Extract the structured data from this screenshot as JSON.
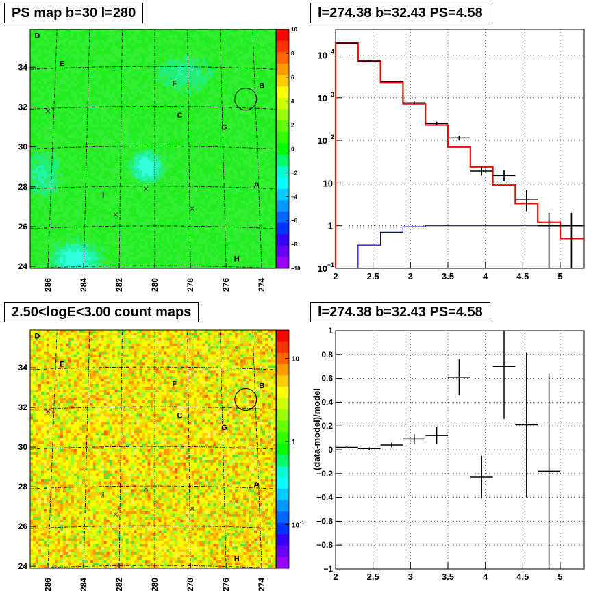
{
  "chart_data": [
    {
      "type": "heatmap",
      "title": "PS map b=30 l=280",
      "x_ticks": [
        "286",
        "284",
        "282",
        "280",
        "278",
        "276",
        "274"
      ],
      "y_ticks": [
        "24",
        "26",
        "28",
        "30",
        "32",
        "34"
      ],
      "xlim": [
        287,
        273.2
      ],
      "ylim": [
        23.9,
        35.9
      ],
      "colorbar_ticks": [
        "10",
        "8",
        "6",
        "4",
        "2",
        "0",
        "−2",
        "−4",
        "−6",
        "−8",
        "−10"
      ],
      "zlim": [
        -10,
        10
      ],
      "source_labels": [
        {
          "text": "D",
          "l": 286.6,
          "b": 35.6
        },
        {
          "text": "E",
          "l": 285.2,
          "b": 34.2
        },
        {
          "text": "F",
          "l": 278.9,
          "b": 33.2
        },
        {
          "text": "B",
          "l": 274.0,
          "b": 33.1
        },
        {
          "text": "C",
          "l": 278.6,
          "b": 31.6
        },
        {
          "text": "G",
          "l": 276.1,
          "b": 31.0
        },
        {
          "text": "A",
          "l": 274.3,
          "b": 28.1
        },
        {
          "text": "I",
          "l": 282.9,
          "b": 27.6
        },
        {
          "text": "H",
          "l": 275.4,
          "b": 24.4
        }
      ],
      "crosses": [
        {
          "l": 286.0,
          "b": 31.8
        },
        {
          "l": 282.2,
          "b": 26.6
        },
        {
          "l": 280.5,
          "b": 27.9
        },
        {
          "l": 277.9,
          "b": 26.9
        }
      ],
      "circle": {
        "l": 274.9,
        "b": 32.4,
        "r": 0.55
      },
      "colors": {
        "background": "#22ee22",
        "cyan": "#33ffdd",
        "low": "#22dd88"
      }
    },
    {
      "type": "line",
      "title": "l=274.38 b=32.43 PS=4.58",
      "x_ticks": [
        "2",
        "2.5",
        "3",
        "3.5",
        "4",
        "4.5",
        "5"
      ],
      "y_ticks": [
        {
          "value": 0.1,
          "base": "10",
          "exp": "−1"
        },
        {
          "value": 1,
          "base": "1",
          "exp": ""
        },
        {
          "value": 10,
          "base": "10",
          "exp": ""
        },
        {
          "value": 100,
          "base": "10",
          "exp": "2"
        },
        {
          "value": 1000,
          "base": "10",
          "exp": "3"
        },
        {
          "value": 10000,
          "base": "10",
          "exp": "4"
        }
      ],
      "xlim": [
        2,
        5.32
      ],
      "ylim": [
        0.1,
        40000
      ],
      "yscale": "log",
      "grid": true,
      "model_total": {
        "color": "#ff0000",
        "edges": [
          2,
          2.3,
          2.6,
          2.9,
          3.2,
          3.5,
          3.8,
          4.1,
          4.4,
          4.7,
          5.0,
          5.32
        ],
        "values": [
          19000,
          7200,
          2300,
          720,
          230,
          70,
          24,
          9,
          3.3,
          1.2,
          0.5
        ]
      },
      "model_background": {
        "color": "#0000cc",
        "edges": [
          2,
          2.3,
          2.6,
          2.9,
          3.2,
          3.5,
          3.8,
          4.1,
          4.4,
          4.7,
          5.0,
          5.32
        ],
        "values": [
          0.01,
          0.35,
          0.7,
          0.95,
          1.0,
          1.0,
          1.0,
          1.0,
          1.0,
          1.0,
          1.0
        ]
      },
      "data_points": [
        {
          "x": 2.15,
          "xerr": 0.15,
          "y": 19000,
          "ylo": 19000,
          "yhi": 19000
        },
        {
          "x": 2.45,
          "xerr": 0.15,
          "y": 7300,
          "ylo": 7300,
          "yhi": 7300
        },
        {
          "x": 2.75,
          "xerr": 0.15,
          "y": 2400,
          "ylo": 2400,
          "yhi": 2400
        },
        {
          "x": 3.05,
          "xerr": 0.15,
          "y": 760,
          "ylo": 700,
          "yhi": 820
        },
        {
          "x": 3.35,
          "xerr": 0.15,
          "y": 250,
          "ylo": 225,
          "yhi": 275
        },
        {
          "x": 3.65,
          "xerr": 0.15,
          "y": 115,
          "ylo": 100,
          "yhi": 130
        },
        {
          "x": 3.95,
          "xerr": 0.15,
          "y": 19,
          "ylo": 15,
          "yhi": 24
        },
        {
          "x": 4.25,
          "xerr": 0.15,
          "y": 15,
          "ylo": 11,
          "yhi": 20
        },
        {
          "x": 4.55,
          "xerr": 0.15,
          "y": 4.2,
          "ylo": 2.2,
          "yhi": 6.8
        },
        {
          "x": 4.85,
          "xerr": 0.15,
          "y": 1,
          "ylo": 0.1,
          "yhi": 2
        },
        {
          "x": 5.15,
          "xerr": 0.15,
          "y": 1,
          "ylo": 0.1,
          "yhi": 2
        }
      ]
    },
    {
      "type": "heatmap",
      "title": "2.50<logE<3.00 count maps",
      "x_ticks": [
        "286",
        "284",
        "282",
        "280",
        "278",
        "276",
        "274"
      ],
      "y_ticks": [
        "24",
        "26",
        "28",
        "30",
        "32",
        "34"
      ],
      "xlim": [
        287,
        273.2
      ],
      "ylim": [
        23.9,
        35.9
      ],
      "colorbar_ticks": [
        {
          "value": 10,
          "base": "10",
          "exp": ""
        },
        {
          "value": 1,
          "base": "1",
          "exp": ""
        },
        {
          "value": 0.1,
          "base": "10",
          "exp": "-1"
        }
      ],
      "zscale": "log",
      "source_labels": [
        {
          "text": "D",
          "l": 286.6,
          "b": 35.6
        },
        {
          "text": "E",
          "l": 285.2,
          "b": 34.2
        },
        {
          "text": "F",
          "l": 278.9,
          "b": 33.2
        },
        {
          "text": "B",
          "l": 274.0,
          "b": 33.1
        },
        {
          "text": "C",
          "l": 278.6,
          "b": 31.6
        },
        {
          "text": "G",
          "l": 276.1,
          "b": 31.0
        },
        {
          "text": "A",
          "l": 274.3,
          "b": 28.1
        },
        {
          "text": "I",
          "l": 282.9,
          "b": 27.6
        },
        {
          "text": "H",
          "l": 275.4,
          "b": 24.4
        }
      ],
      "crosses": [
        {
          "l": 286.0,
          "b": 31.8
        },
        {
          "l": 282.2,
          "b": 26.6
        },
        {
          "l": 280.5,
          "b": 27.9
        },
        {
          "l": 277.9,
          "b": 26.9
        }
      ],
      "circle": {
        "l": 274.9,
        "b": 32.4,
        "r": 0.55
      },
      "colors": {
        "pixels": [
          "#ffff00",
          "#ffcc00",
          "#ff9900",
          "#ccff00",
          "#99ff33",
          "#66dd33",
          "#ffee66",
          "#ff6600"
        ]
      }
    },
    {
      "type": "scatter",
      "title": "l=274.38 b=32.43 PS=4.58",
      "ylabel": "(data-model)/model",
      "x_ticks": [
        "2",
        "2.5",
        "3",
        "3.5",
        "4",
        "4.5",
        "5"
      ],
      "y_ticks": [
        "−1",
        "−0.8",
        "−0.6",
        "−0.4",
        "−0.2",
        "0",
        "0.2",
        "0.4",
        "0.6",
        "0.8",
        "1"
      ],
      "xlim": [
        2,
        5.32
      ],
      "ylim": [
        -1,
        1
      ],
      "grid": true,
      "data_points": [
        {
          "x": 2.15,
          "xerr": 0.15,
          "y": 0.02,
          "yerr": 0.01
        },
        {
          "x": 2.45,
          "xerr": 0.15,
          "y": 0.01,
          "yerr": 0.01
        },
        {
          "x": 2.75,
          "xerr": 0.15,
          "y": 0.04,
          "yerr": 0.02
        },
        {
          "x": 3.05,
          "xerr": 0.15,
          "y": 0.09,
          "yerr": 0.04
        },
        {
          "x": 3.35,
          "xerr": 0.15,
          "y": 0.12,
          "yerr": 0.07
        },
        {
          "x": 3.65,
          "xerr": 0.15,
          "y": 0.61,
          "yerr": 0.15
        },
        {
          "x": 3.95,
          "xerr": 0.15,
          "y": -0.23,
          "yerr": 0.18
        },
        {
          "x": 4.25,
          "xerr": 0.15,
          "y": 0.7,
          "yerr": 0.44
        },
        {
          "x": 4.55,
          "xerr": 0.15,
          "y": 0.21,
          "yerr": 0.61
        },
        {
          "x": 4.85,
          "xerr": 0.15,
          "y": -0.18,
          "yerr": 0.82
        }
      ]
    }
  ]
}
